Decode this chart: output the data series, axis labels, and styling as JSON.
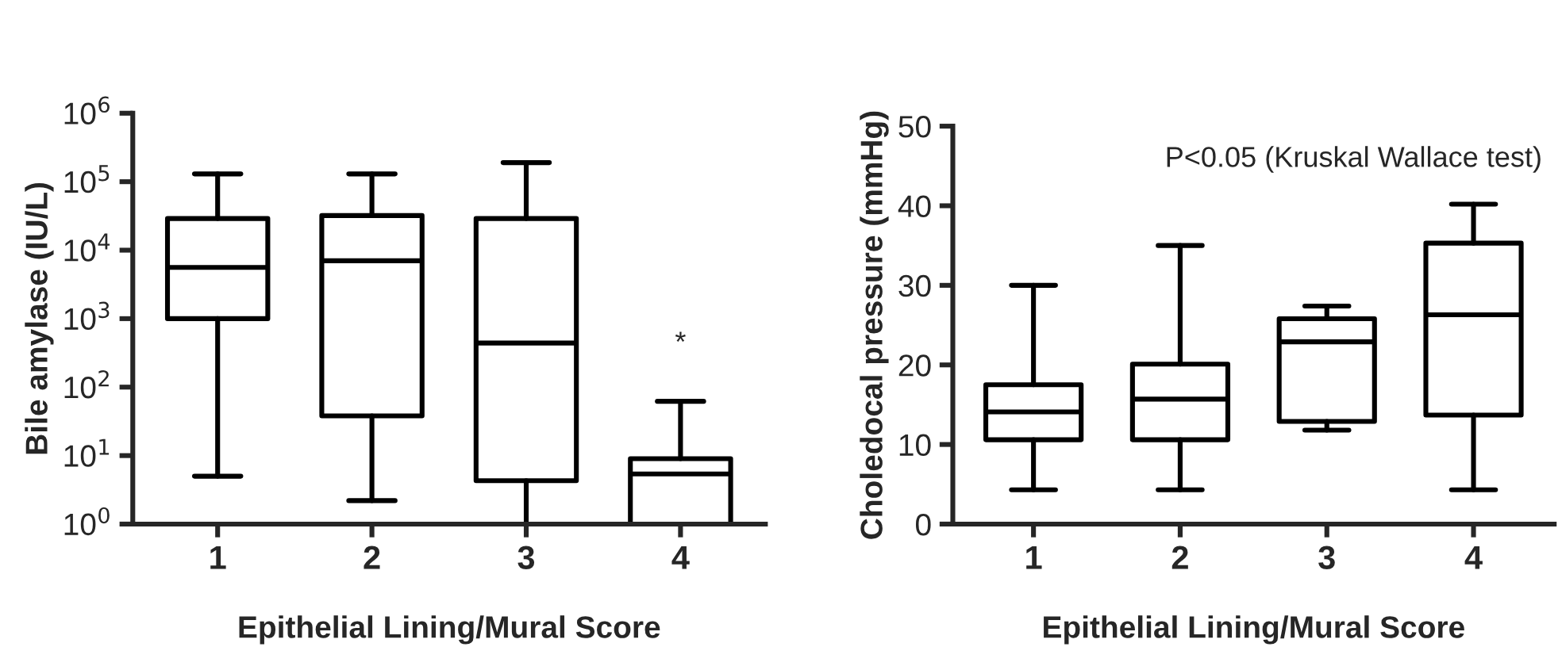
{
  "chart_data": [
    {
      "type": "box",
      "categories": [
        "1",
        "2",
        "3",
        "4"
      ],
      "xlabel": "Epithelial Lining/Mural Score",
      "ylabel": "Bile amylase (IU/L)",
      "log": "y",
      "ylim": [
        1,
        1000000
      ],
      "yticks": [
        {
          "value": 1,
          "label": "10$^{0}$"
        },
        {
          "value": 10,
          "label": "10$^{1}$"
        },
        {
          "value": 100,
          "label": "10$^{2}$"
        },
        {
          "value": 1000,
          "label": "10$^{3}$"
        },
        {
          "value": 10000,
          "label": "10$^{4}$"
        },
        {
          "value": 100000,
          "label": "10$^{5}$"
        },
        {
          "value": 1000000,
          "label": "10$^{6}$"
        }
      ],
      "color": "#000000",
      "boxes": [
        {
          "low": 5,
          "q1": 1000,
          "median": 5600,
          "q3": 29000,
          "high": 130000
        },
        {
          "low": 2.2,
          "q1": 38,
          "median": 7000,
          "q3": 32000,
          "high": 130000
        },
        {
          "low": 1,
          "q1": 4.3,
          "median": 440,
          "q3": 29000,
          "high": 190000
        },
        {
          "low": 1,
          "q1": 1,
          "median": 5.4,
          "q3": 9,
          "high": 62
        }
      ],
      "annotations": [
        "*"
      ]
    },
    {
      "type": "box",
      "categories": [
        "1",
        "2",
        "3",
        "4"
      ],
      "xlabel": "Epithelial Lining/Mural Score",
      "ylabel": "Choledocal pressure (mmHg)",
      "ylim": [
        0,
        50
      ],
      "yticks": [
        0,
        10,
        20,
        30,
        40,
        50
      ],
      "color": "#000000",
      "boxes": [
        {
          "low": 4.3,
          "q1": 10.6,
          "median": 14.1,
          "q3": 17.5,
          "high": 30
        },
        {
          "low": 4.3,
          "q1": 10.6,
          "median": 15.7,
          "q3": 20.1,
          "high": 35
        },
        {
          "low": 11.8,
          "q1": 12.9,
          "median": 22.9,
          "q3": 25.8,
          "high": 27.4
        },
        {
          "low": 4.3,
          "q1": 13.7,
          "median": 26.3,
          "q3": 35.3,
          "high": 40.2
        }
      ],
      "annotations": [
        "P<0.05 (Kruskal Wallace test)"
      ]
    }
  ]
}
